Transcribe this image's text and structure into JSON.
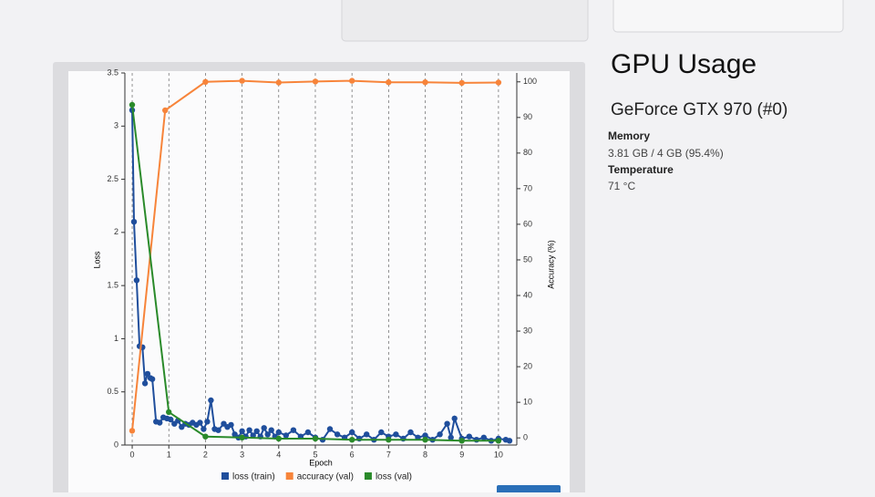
{
  "chart_data": {
    "type": "line",
    "y_label": "Loss",
    "y2_label": "Accuracy (%)",
    "x_label": "Epoch",
    "xlim": [
      -0.2,
      10.5
    ],
    "xticks": [
      0,
      1,
      2,
      3,
      4,
      5,
      6,
      7,
      8,
      9,
      10
    ],
    "ylim": [
      0,
      3.5
    ],
    "yticks": [
      0,
      0.5,
      1,
      1.5,
      2,
      2.5,
      3,
      3.5
    ],
    "y2lim": [
      -2,
      102.5
    ],
    "y2ticks": [
      0,
      10,
      20,
      30,
      40,
      50,
      60,
      70,
      80,
      90,
      100
    ],
    "grid": true,
    "legend": "bottom",
    "series": [
      {
        "name": "loss (train)",
        "color": "#1f4e9c",
        "axis": "y",
        "x": [
          0,
          0.05,
          0.12,
          0.2,
          0.28,
          0.35,
          0.42,
          0.5,
          0.55,
          0.65,
          0.75,
          0.85,
          0.95,
          1.05,
          1.15,
          1.25,
          1.35,
          1.45,
          1.55,
          1.65,
          1.75,
          1.85,
          1.95,
          2.05,
          2.15,
          2.25,
          2.35,
          2.5,
          2.6,
          2.7,
          2.8,
          2.9,
          3.0,
          3.1,
          3.2,
          3.3,
          3.4,
          3.5,
          3.6,
          3.7,
          3.8,
          3.9,
          4.0,
          4.2,
          4.4,
          4.6,
          4.8,
          5.0,
          5.2,
          5.4,
          5.6,
          5.8,
          6.0,
          6.2,
          6.4,
          6.6,
          6.8,
          7.0,
          7.2,
          7.4,
          7.6,
          7.8,
          8.0,
          8.2,
          8.4,
          8.6,
          8.7,
          8.8,
          9.0,
          9.2,
          9.4,
          9.6,
          9.8,
          10.0,
          10.2,
          10.3
        ],
        "values": [
          3.15,
          2.1,
          1.55,
          0.93,
          0.92,
          0.58,
          0.67,
          0.63,
          0.62,
          0.22,
          0.21,
          0.26,
          0.25,
          0.24,
          0.2,
          0.23,
          0.17,
          0.2,
          0.19,
          0.21,
          0.19,
          0.21,
          0.15,
          0.22,
          0.42,
          0.15,
          0.14,
          0.2,
          0.17,
          0.19,
          0.1,
          0.07,
          0.13,
          0.08,
          0.14,
          0.09,
          0.13,
          0.08,
          0.16,
          0.1,
          0.14,
          0.08,
          0.12,
          0.09,
          0.14,
          0.08,
          0.12,
          0.07,
          0.05,
          0.15,
          0.1,
          0.07,
          0.12,
          0.06,
          0.1,
          0.05,
          0.12,
          0.08,
          0.1,
          0.06,
          0.12,
          0.07,
          0.09,
          0.05,
          0.1,
          0.2,
          0.07,
          0.25,
          0.06,
          0.08,
          0.05,
          0.07,
          0.04,
          0.06,
          0.05,
          0.04
        ]
      },
      {
        "name": "accuracy (val)",
        "color": "#f7843a",
        "axis": "y2",
        "x": [
          0,
          0.9,
          2,
          3,
          4,
          5,
          6,
          7,
          8,
          9,
          10
        ],
        "values": [
          2,
          92,
          100,
          100.3,
          99.8,
          100.1,
          100.3,
          99.9,
          99.9,
          99.7,
          99.8
        ]
      },
      {
        "name": "loss (val)",
        "color": "#2a8a2a",
        "axis": "y",
        "x": [
          0,
          1,
          2,
          3,
          4,
          5,
          6,
          7,
          8,
          9,
          10
        ],
        "values": [
          3.2,
          0.31,
          0.08,
          0.07,
          0.06,
          0.06,
          0.05,
          0.05,
          0.05,
          0.04,
          0.04
        ]
      }
    ]
  },
  "gpu_panel": {
    "title": "GPU Usage",
    "device": "GeForce GTX 970 (#0)",
    "memory_label": "Memory",
    "memory_value": "3.81 GB / 4 GB (95.4%)",
    "temperature_label": "Temperature",
    "temperature_value": "71 °C"
  }
}
